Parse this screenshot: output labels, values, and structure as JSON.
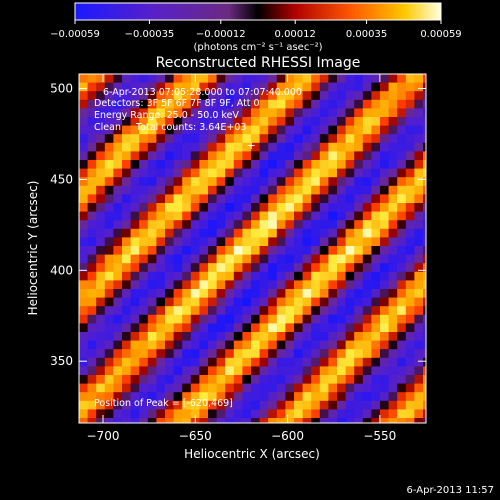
{
  "chart_data": {
    "type": "heatmap",
    "title": "Reconstructed RHESSI Image",
    "xlabel": "Heliocentric X (arcsec)",
    "ylabel": "Heliocentric Y (arcsec)",
    "xlim": [
      -713,
      -525
    ],
    "ylim": [
      316,
      508
    ],
    "x_ticks": [
      -700,
      -650,
      -600,
      -550
    ],
    "y_ticks": [
      350,
      400,
      450,
      500
    ],
    "x_tick_labels": [
      "−700",
      "−650",
      "−600",
      "−550"
    ],
    "y_tick_labels": [
      "350",
      "400",
      "450",
      "500"
    ],
    "colorbar": {
      "range": [
        -0.00059,
        0.00059
      ],
      "ticks": [
        -0.00059,
        -0.00035,
        -0.00012,
        0.00012,
        0.00035,
        0.00059
      ],
      "tick_labels": [
        "−0.00059",
        "−0.00035",
        "−0.00012",
        "0.00012",
        "0.00035",
        "0.00059"
      ],
      "unit_label": "(photons cm⁻² s⁻¹ asec⁻²)"
    },
    "annotations": [
      "6-Apr-2013 07:05:28.000 to 07:07:40.000",
      "Detectors: 3F 5F 6F 7F 8F 9F, Att 0",
      "Energy Range: 25.0 - 50.0 keV",
      "Clean     Total counts: 3.64E+03"
    ],
    "peak_label": "Position of Peak = [-620,469]",
    "peak": {
      "x": -620,
      "y": 469
    }
  },
  "footer": {
    "timestamp": "6-Apr-2013 11:57"
  },
  "colors": {
    "background": "#000000",
    "text": "#ffffff"
  }
}
